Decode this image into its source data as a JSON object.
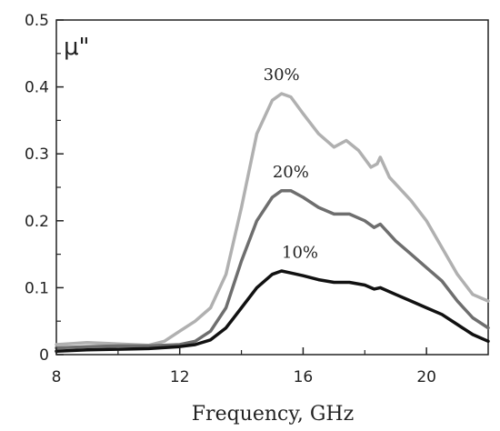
{
  "chart_data": {
    "type": "line",
    "title": "",
    "xlabel": "Frequency, GHz",
    "ylabel": "μ\"",
    "xlim": [
      8,
      22
    ],
    "ylim": [
      0,
      0.5
    ],
    "xticks": [
      8,
      12,
      16,
      20
    ],
    "yticks": [
      0,
      0.1,
      0.2,
      0.3,
      0.4,
      0.5
    ],
    "ytick_labels": [
      "0",
      "0.1",
      "0.2",
      "0.3",
      "0.4",
      "0.5"
    ],
    "grid": false,
    "legend": "none",
    "series": [
      {
        "name": "30%",
        "color": "#b0b0b0",
        "x": [
          8,
          9,
          10,
          11,
          11.5,
          12,
          12.5,
          13,
          13.5,
          14,
          14.5,
          15,
          15.3,
          15.6,
          16,
          16.5,
          17,
          17.4,
          17.8,
          18.2,
          18.4,
          18.5,
          18.8,
          19.5,
          20,
          20.5,
          21,
          21.5,
          22
        ],
        "y": [
          0.015,
          0.018,
          0.016,
          0.014,
          0.02,
          0.035,
          0.05,
          0.07,
          0.12,
          0.22,
          0.33,
          0.38,
          0.39,
          0.385,
          0.36,
          0.33,
          0.31,
          0.32,
          0.305,
          0.28,
          0.285,
          0.295,
          0.265,
          0.23,
          0.2,
          0.16,
          0.12,
          0.09,
          0.08
        ]
      },
      {
        "name": "20%",
        "color": "#6e6e6e",
        "x": [
          8,
          9,
          10,
          11,
          12,
          12.5,
          13,
          13.5,
          14,
          14.5,
          15,
          15.3,
          15.6,
          16,
          16.5,
          17,
          17.5,
          18,
          18.3,
          18.5,
          19,
          19.5,
          20,
          20.5,
          21,
          21.5,
          22
        ],
        "y": [
          0.01,
          0.012,
          0.013,
          0.013,
          0.015,
          0.02,
          0.035,
          0.07,
          0.14,
          0.2,
          0.235,
          0.245,
          0.245,
          0.235,
          0.22,
          0.21,
          0.21,
          0.2,
          0.19,
          0.195,
          0.17,
          0.15,
          0.13,
          0.11,
          0.08,
          0.055,
          0.04
        ]
      },
      {
        "name": "10%",
        "color": "#111111",
        "x": [
          8,
          9,
          10,
          11,
          12,
          12.5,
          13,
          13.5,
          14,
          14.5,
          15,
          15.3,
          15.6,
          16,
          16.5,
          17,
          17.5,
          18,
          18.3,
          18.5,
          19,
          19.5,
          20,
          20.5,
          21,
          21.5,
          22
        ],
        "y": [
          0.005,
          0.007,
          0.008,
          0.009,
          0.012,
          0.015,
          0.022,
          0.04,
          0.07,
          0.1,
          0.12,
          0.125,
          0.122,
          0.118,
          0.112,
          0.108,
          0.108,
          0.104,
          0.098,
          0.1,
          0.09,
          0.08,
          0.07,
          0.06,
          0.045,
          0.03,
          0.02
        ]
      }
    ],
    "annotations": [
      {
        "text": "30%",
        "x": 15.3,
        "y": 0.41
      },
      {
        "text": "20%",
        "x": 15.6,
        "y": 0.265
      },
      {
        "text": "10%",
        "x": 15.9,
        "y": 0.145
      }
    ]
  }
}
